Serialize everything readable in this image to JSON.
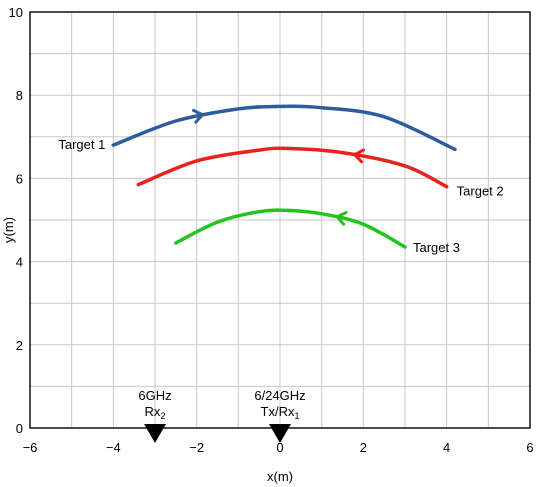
{
  "chart_data": {
    "type": "line",
    "title": "",
    "xlabel": "x(m)",
    "ylabel": "y(m)",
    "xlim": [
      -6,
      6
    ],
    "ylim": [
      0,
      10
    ],
    "x_ticks": [
      -6,
      -4,
      -2,
      0,
      2,
      4,
      6
    ],
    "y_ticks": [
      0,
      2,
      4,
      6,
      8,
      10
    ],
    "grid": true,
    "grid_minor_step": 1,
    "series": [
      {
        "name": "Target 1",
        "color": "#2e5d9e",
        "direction": "left-to-right",
        "points": [
          [
            -4.0,
            6.8
          ],
          [
            -2.5,
            7.38
          ],
          [
            -1.0,
            7.67
          ],
          [
            0.0,
            7.73
          ],
          [
            1.0,
            7.7
          ],
          [
            2.5,
            7.48
          ],
          [
            4.2,
            6.7
          ]
        ]
      },
      {
        "name": "Target 2",
        "color": "#e8231c",
        "direction": "right-to-left",
        "points": [
          [
            -3.4,
            5.85
          ],
          [
            -2.0,
            6.42
          ],
          [
            -0.5,
            6.68
          ],
          [
            0.2,
            6.72
          ],
          [
            1.5,
            6.62
          ],
          [
            3.0,
            6.3
          ],
          [
            4.0,
            5.8
          ]
        ]
      },
      {
        "name": "Target 3",
        "color": "#22c41e",
        "direction": "right-to-left",
        "points": [
          [
            -2.5,
            4.45
          ],
          [
            -1.5,
            4.95
          ],
          [
            -0.5,
            5.2
          ],
          [
            0.2,
            5.23
          ],
          [
            1.0,
            5.15
          ],
          [
            2.0,
            4.9
          ],
          [
            3.0,
            4.35
          ]
        ]
      }
    ],
    "antennas": [
      {
        "x": -3.0,
        "line1": "6GHz",
        "line2_main": "Rx",
        "line2_sub": "2"
      },
      {
        "x": 0.0,
        "line1": "6/24GHz",
        "line2_main": "Tx/Rx",
        "line2_sub": "1"
      }
    ]
  }
}
